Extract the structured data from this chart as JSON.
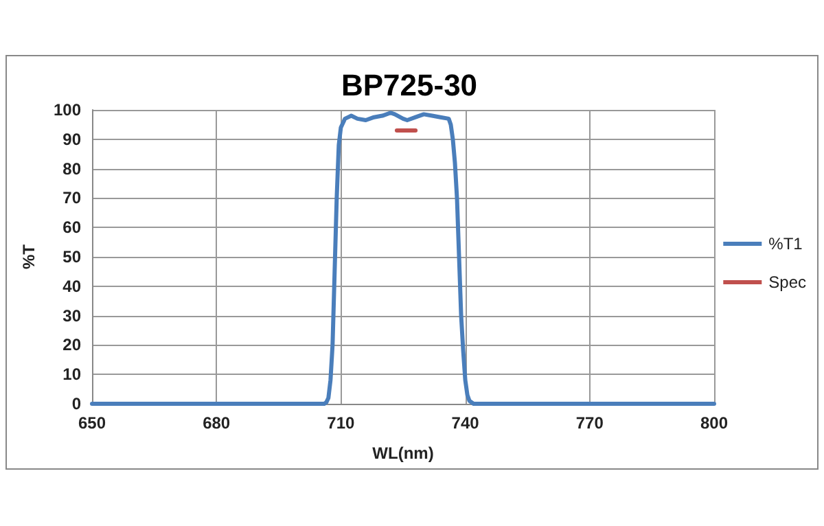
{
  "chart_data": {
    "type": "line",
    "title": "BP725-30",
    "xlabel": "WL(nm)",
    "ylabel": "%T",
    "xlim": [
      650,
      800
    ],
    "xticks": [
      650,
      680,
      710,
      740,
      770,
      800
    ],
    "ylim": [
      0,
      100
    ],
    "yticks": [
      0,
      10,
      20,
      30,
      40,
      50,
      60,
      70,
      80,
      90,
      100
    ],
    "grid": true,
    "legend": "right",
    "marker": "none",
    "line_style": "solid",
    "series": [
      {
        "name": "%T1",
        "color": "#4a7ebb",
        "x": [
          650,
          700,
          706,
          706.5,
          707,
          707.5,
          708,
          708.5,
          709,
          709.5,
          710,
          711,
          712.5,
          714,
          716,
          718,
          720,
          722,
          723,
          725,
          726,
          728,
          730,
          732,
          734,
          736,
          736.5,
          737,
          737.5,
          738,
          738.5,
          739,
          739.5,
          740,
          740.5,
          741,
          742,
          750,
          800
        ],
        "values": [
          0,
          0,
          0,
          0.5,
          2,
          8,
          20,
          45,
          70,
          88,
          94,
          97,
          98,
          97,
          96.5,
          97.5,
          98,
          99,
          98.5,
          97,
          96.5,
          97.5,
          98.5,
          98,
          97.5,
          97,
          95,
          90,
          82,
          70,
          50,
          30,
          18,
          8,
          3,
          1,
          0,
          0,
          0
        ]
      },
      {
        "name": "Spec",
        "color": "#c0504d",
        "x": [
          723.5,
          728
        ],
        "values": [
          93,
          93
        ]
      }
    ]
  }
}
